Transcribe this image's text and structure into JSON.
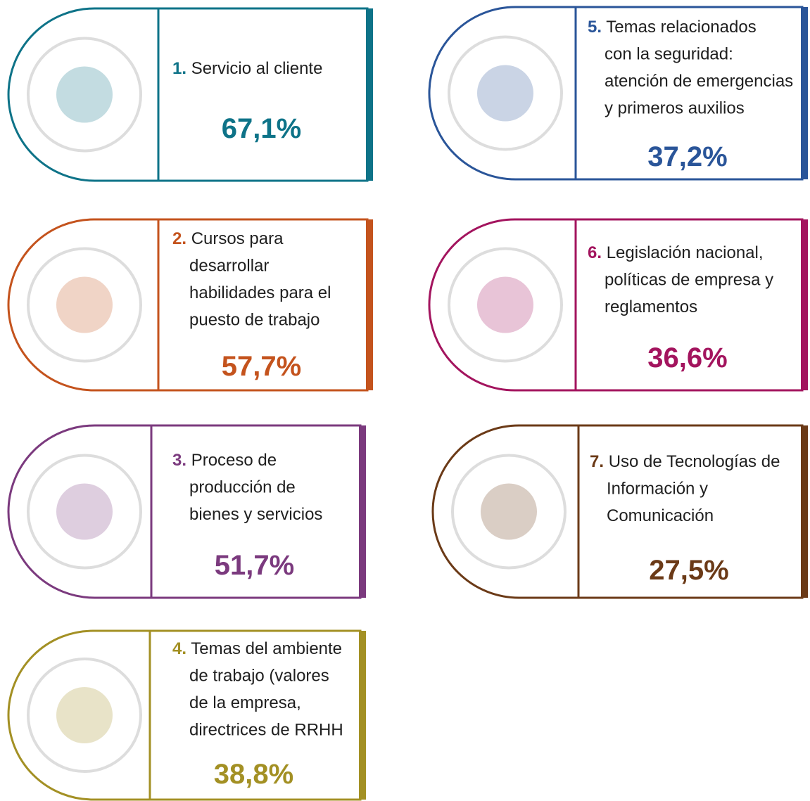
{
  "items": [
    {
      "number": "1.",
      "lines": [
        "Servicio al cliente"
      ],
      "percent": "67,1%",
      "color": "#0e7388"
    },
    {
      "number": "2.",
      "lines": [
        "Cursos para",
        "desarrollar",
        "habilidades para el",
        "puesto de trabajo"
      ],
      "percent": "57,7%",
      "color": "#c4531d"
    },
    {
      "number": "3.",
      "lines": [
        "Proceso de",
        "producción de",
        "bienes y servicios"
      ],
      "percent": "51,7%",
      "color": "#7b3a7e"
    },
    {
      "number": "4.",
      "lines": [
        "Temas del ambiente",
        "de trabajo (valores",
        "de la empresa,",
        "directrices de RRHH"
      ],
      "percent": "38,8%",
      "color": "#a39024"
    },
    {
      "number": "5.",
      "lines": [
        "Temas  relacionados",
        "con la seguridad:",
        "atención de emergencias",
        "y primeros auxilios"
      ],
      "percent": "37,2%",
      "color": "#2a5599"
    },
    {
      "number": "6.",
      "lines": [
        "Legislación nacional,",
        "políticas de empresa y",
        "reglamentos"
      ],
      "percent": "36,6%",
      "color": "#a3145e"
    },
    {
      "number": "7.",
      "lines": [
        "Uso de Tecnologías de",
        "Información y",
        "Comunicación"
      ],
      "percent": "27,5%",
      "color": "#6b3a17"
    }
  ]
}
